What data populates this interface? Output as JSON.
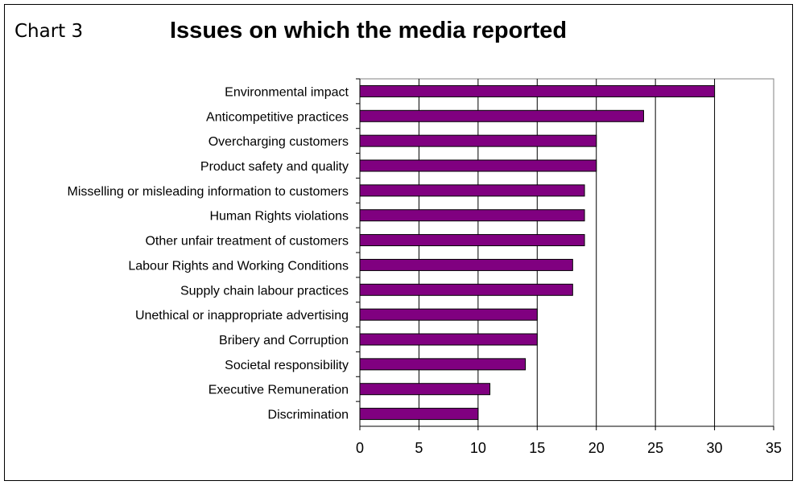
{
  "header": {
    "chart_number": "Chart 3",
    "title": "Issues on which the media reported"
  },
  "chart_data": {
    "type": "bar",
    "orientation": "horizontal",
    "title": "Issues on which the media reported",
    "categories": [
      "Environmental impact",
      "Anticompetitive practices",
      "Overcharging customers",
      "Product safety and quality",
      "Misselling or misleading information to customers",
      "Human Rights violations",
      "Other unfair treatment of customers",
      "Labour Rights and Working Conditions",
      "Supply chain labour practices",
      "Unethical or inappropriate advertising",
      "Bribery and Corruption",
      "Societal responsibility",
      "Executive Remuneration",
      "Discrimination"
    ],
    "values": [
      30,
      24,
      20,
      20,
      19,
      19,
      19,
      18,
      18,
      15,
      15,
      14,
      11,
      10
    ],
    "xlabel": "",
    "ylabel": "",
    "xlim": [
      0,
      35
    ],
    "xticks": [
      0,
      5,
      10,
      15,
      20,
      25,
      30,
      35
    ],
    "grid": "vertical",
    "legend": "none",
    "bar_color": "#800080"
  }
}
